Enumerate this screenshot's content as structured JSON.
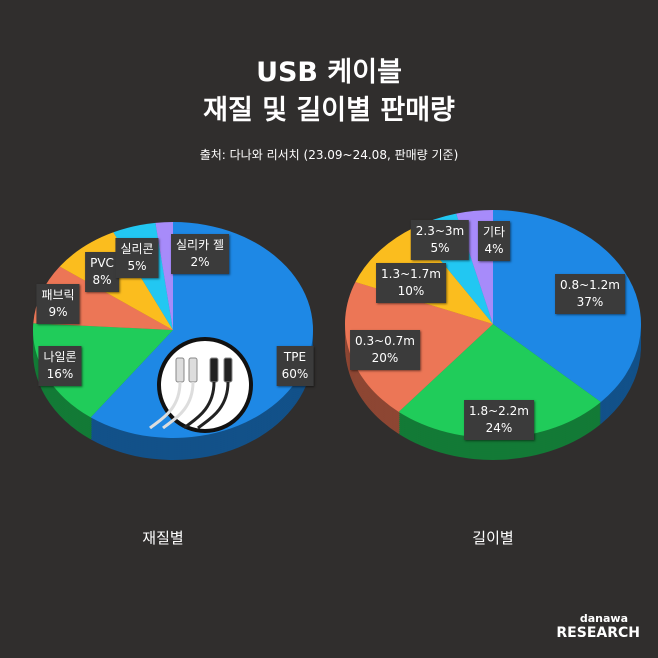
{
  "title_line1": "USB 케이블",
  "title_line2": "재질 및 길이별 판매량",
  "source": "출처: 다나와 리서치 (23.09~24.08, 판매량 기준)",
  "logo": {
    "top": "danawa",
    "bottom": "RESEARCH"
  },
  "chart_data": [
    {
      "type": "pie",
      "caption": "재질별",
      "unit": "%",
      "slices": [
        {
          "label": "TPE",
          "value": 60,
          "color": "#1e88e5"
        },
        {
          "label": "나일론",
          "value": 16,
          "color": "#20cc5a"
        },
        {
          "label": "패브릭",
          "value": 9,
          "color": "#ec7656"
        },
        {
          "label": "PVC",
          "value": 8,
          "color": "#fbbd1e"
        },
        {
          "label": "실리콘",
          "value": 5,
          "color": "#22c7f2"
        },
        {
          "label": "실리카 젤",
          "value": 2,
          "color": "#a78bfa"
        }
      ]
    },
    {
      "type": "pie",
      "caption": "길이별",
      "unit": "%",
      "slices": [
        {
          "label": "0.8~1.2m",
          "value": 37,
          "color": "#1e88e5"
        },
        {
          "label": "1.8~2.2m",
          "value": 24,
          "color": "#20cc5a"
        },
        {
          "label": "0.3~0.7m",
          "value": 20,
          "color": "#ec7656"
        },
        {
          "label": "1.3~1.7m",
          "value": 10,
          "color": "#fbbd1e"
        },
        {
          "label": "2.3~3m",
          "value": 5,
          "color": "#22c7f2"
        },
        {
          "label": "기타",
          "value": 4,
          "color": "#a78bfa"
        }
      ]
    }
  ]
}
